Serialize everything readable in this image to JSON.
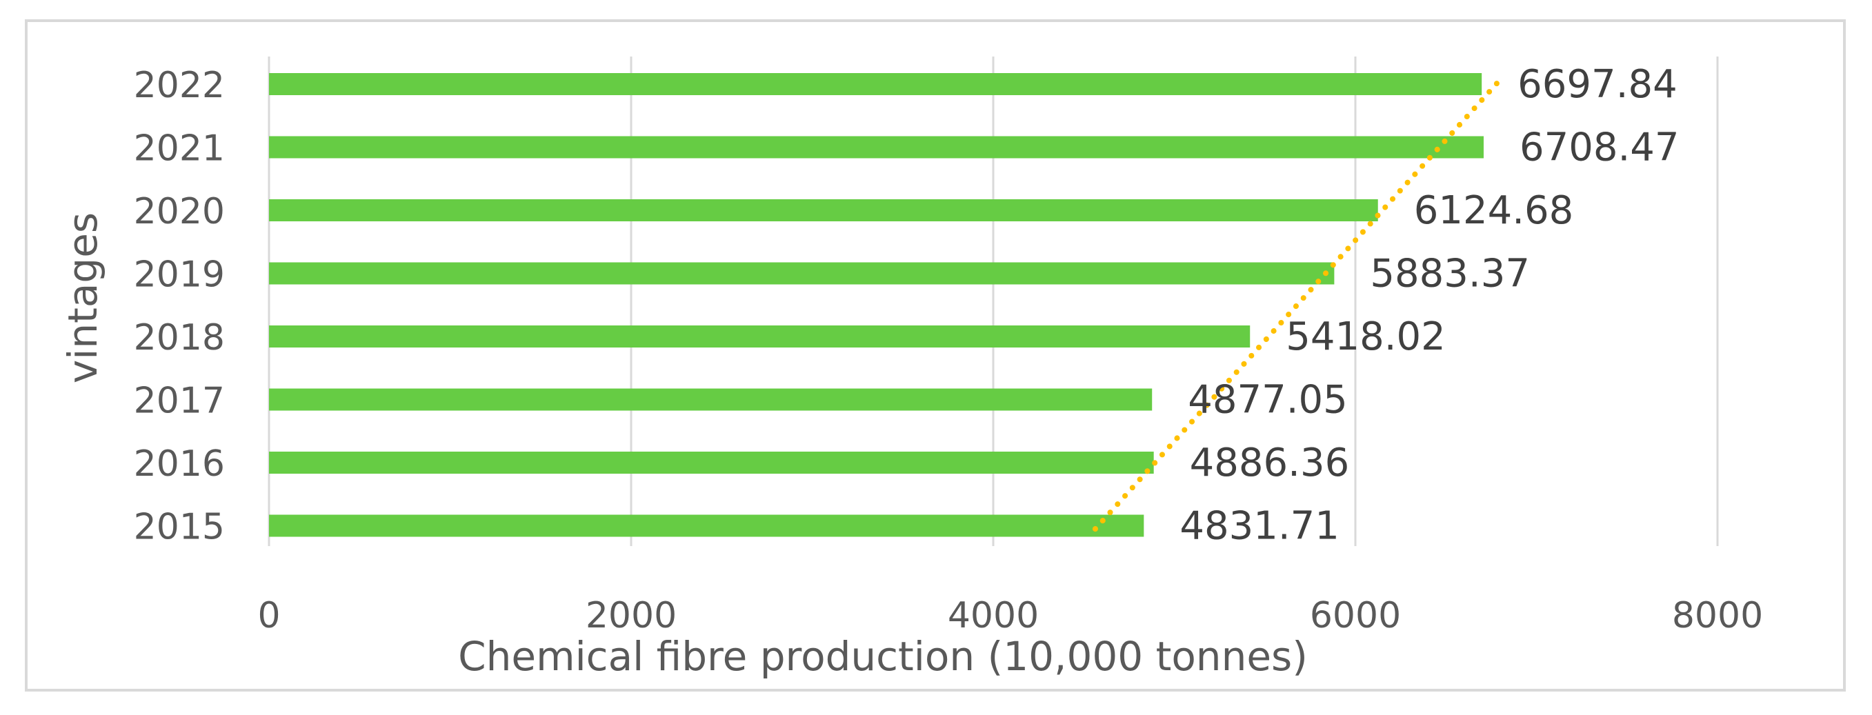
{
  "chart_data": {
    "type": "bar",
    "orientation": "horizontal",
    "categories": [
      "2015",
      "2016",
      "2017",
      "2018",
      "2019",
      "2020",
      "2021",
      "2022"
    ],
    "values": [
      4831.71,
      4886.36,
      4877.05,
      5418.02,
      5883.37,
      6124.68,
      6708.47,
      6697.84
    ],
    "data_labels": [
      "4831.71",
      "4886.36",
      "4877.05",
      "5418.02",
      "5883.37",
      "6124.68",
      "6708.47",
      "6697.84"
    ],
    "xlabel": "Chemical fibre production (10,000 tonnes)",
    "ylabel": "vintages",
    "xlim": [
      0,
      8000
    ],
    "xticks": [
      0,
      2000,
      4000,
      6000,
      8000
    ],
    "xtick_labels": [
      "0",
      "2000",
      "4000",
      "6000",
      "8000"
    ],
    "grid": "vertical",
    "legend": "none",
    "trendline": {
      "type": "linear",
      "style": "dotted"
    },
    "colors": {
      "bar": "#66cc44",
      "trendline": "#ffc000",
      "grid": "#d9d9d9"
    }
  }
}
